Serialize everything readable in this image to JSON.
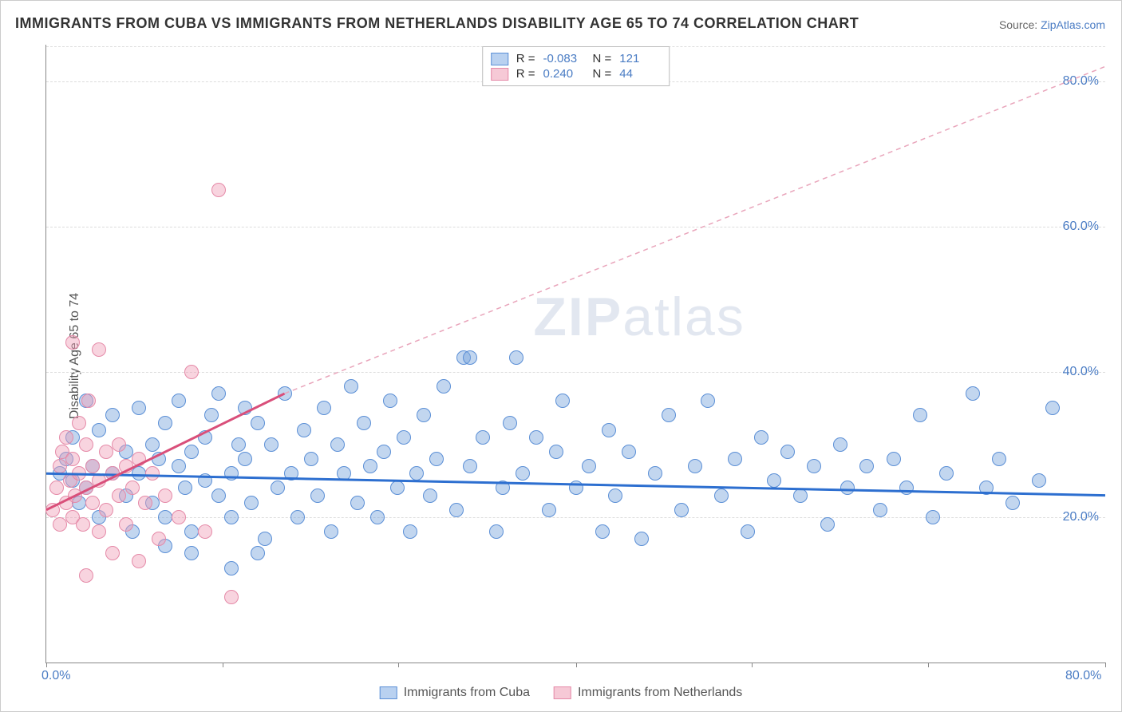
{
  "title": "IMMIGRANTS FROM CUBA VS IMMIGRANTS FROM NETHERLANDS DISABILITY AGE 65 TO 74 CORRELATION CHART",
  "source_label": "Source:",
  "source_name": "ZipAtlas.com",
  "ylabel": "Disability Age 65 to 74",
  "watermark": "ZIPatlas",
  "chart": {
    "type": "scatter",
    "xlim": [
      0,
      80
    ],
    "ylim": [
      0,
      85
    ],
    "xtick_pos": [
      0,
      13.3,
      26.6,
      40,
      53.3,
      66.6,
      80
    ],
    "xtick_labels": [
      "0.0%",
      "",
      "",
      "",
      "",
      "",
      "80.0%"
    ],
    "yticks": [
      20,
      40,
      60,
      80
    ],
    "ytick_labels": [
      "20.0%",
      "40.0%",
      "60.0%",
      "80.0%"
    ],
    "background_color": "#ffffff",
    "grid_color": "#dddddd",
    "marker_radius": 9,
    "marker_opacity": 0.45,
    "series": [
      {
        "name": "Immigrants from Cuba",
        "color_fill": "#b9d1f0",
        "color_stroke": "#5b8fd6",
        "R": "-0.083",
        "N": "121",
        "regression": {
          "x1": 0,
          "y1": 26,
          "x2": 80,
          "y2": 23,
          "stroke": "#2d6fd0",
          "width": 3,
          "dash": "none"
        },
        "points": [
          [
            1,
            26
          ],
          [
            1.5,
            28
          ],
          [
            2,
            25
          ],
          [
            2,
            31
          ],
          [
            2.5,
            22
          ],
          [
            3,
            24
          ],
          [
            3,
            36
          ],
          [
            3.5,
            27
          ],
          [
            4,
            20
          ],
          [
            4,
            32
          ],
          [
            5,
            26
          ],
          [
            5,
            34
          ],
          [
            6,
            23
          ],
          [
            6,
            29
          ],
          [
            6.5,
            18
          ],
          [
            7,
            35
          ],
          [
            7,
            26
          ],
          [
            8,
            30
          ],
          [
            8,
            22
          ],
          [
            8.5,
            28
          ],
          [
            9,
            33
          ],
          [
            9,
            20
          ],
          [
            10,
            27
          ],
          [
            10,
            36
          ],
          [
            10.5,
            24
          ],
          [
            11,
            29
          ],
          [
            11,
            18
          ],
          [
            12,
            31
          ],
          [
            12,
            25
          ],
          [
            12.5,
            34
          ],
          [
            13,
            23
          ],
          [
            13,
            37
          ],
          [
            14,
            26
          ],
          [
            14,
            20
          ],
          [
            14.5,
            30
          ],
          [
            15,
            28
          ],
          [
            15,
            35
          ],
          [
            15.5,
            22
          ],
          [
            16,
            33
          ],
          [
            16.5,
            17
          ],
          [
            17,
            30
          ],
          [
            17.5,
            24
          ],
          [
            18,
            37
          ],
          [
            18.5,
            26
          ],
          [
            19,
            20
          ],
          [
            19.5,
            32
          ],
          [
            20,
            28
          ],
          [
            20.5,
            23
          ],
          [
            21,
            35
          ],
          [
            21.5,
            18
          ],
          [
            22,
            30
          ],
          [
            22.5,
            26
          ],
          [
            23,
            38
          ],
          [
            23.5,
            22
          ],
          [
            24,
            33
          ],
          [
            24.5,
            27
          ],
          [
            25,
            20
          ],
          [
            25.5,
            29
          ],
          [
            26,
            36
          ],
          [
            26.5,
            24
          ],
          [
            27,
            31
          ],
          [
            27.5,
            18
          ],
          [
            28,
            26
          ],
          [
            28.5,
            34
          ],
          [
            29,
            23
          ],
          [
            29.5,
            28
          ],
          [
            30,
            38
          ],
          [
            31,
            21
          ],
          [
            31.5,
            42
          ],
          [
            32,
            27
          ],
          [
            33,
            31
          ],
          [
            34,
            18
          ],
          [
            34.5,
            24
          ],
          [
            35,
            33
          ],
          [
            35.5,
            42
          ],
          [
            36,
            26
          ],
          [
            37,
            31
          ],
          [
            38,
            21
          ],
          [
            38.5,
            29
          ],
          [
            39,
            36
          ],
          [
            40,
            24
          ],
          [
            41,
            27
          ],
          [
            42,
            18
          ],
          [
            42.5,
            32
          ],
          [
            43,
            23
          ],
          [
            44,
            29
          ],
          [
            45,
            17
          ],
          [
            46,
            26
          ],
          [
            47,
            34
          ],
          [
            48,
            21
          ],
          [
            49,
            27
          ],
          [
            50,
            36
          ],
          [
            51,
            23
          ],
          [
            52,
            28
          ],
          [
            53,
            18
          ],
          [
            54,
            31
          ],
          [
            55,
            25
          ],
          [
            56,
            29
          ],
          [
            57,
            23
          ],
          [
            58,
            27
          ],
          [
            59,
            19
          ],
          [
            60,
            30
          ],
          [
            60.5,
            24
          ],
          [
            62,
            27
          ],
          [
            63,
            21
          ],
          [
            64,
            28
          ],
          [
            65,
            24
          ],
          [
            66,
            34
          ],
          [
            67,
            20
          ],
          [
            68,
            26
          ],
          [
            70,
            37
          ],
          [
            71,
            24
          ],
          [
            72,
            28
          ],
          [
            73,
            22
          ],
          [
            75,
            25
          ],
          [
            76,
            35
          ],
          [
            14,
            13
          ],
          [
            16,
            15
          ],
          [
            9,
            16
          ],
          [
            11,
            15
          ],
          [
            32,
            42
          ]
        ]
      },
      {
        "name": "Immigrants from Netherlands",
        "color_fill": "#f6c9d6",
        "color_stroke": "#e58aa8",
        "R": "0.240",
        "N": "44",
        "regression": {
          "x1": 0,
          "y1": 21,
          "x2": 18,
          "y2": 37,
          "stroke": "#d94f7a",
          "width": 3,
          "dash": "none"
        },
        "regression_extend": {
          "x1": 18,
          "y1": 37,
          "x2": 80,
          "y2": 82,
          "stroke": "#e9a5bb",
          "width": 1.5,
          "dash": "6 5"
        },
        "points": [
          [
            0.5,
            21
          ],
          [
            0.8,
            24
          ],
          [
            1,
            19
          ],
          [
            1,
            27
          ],
          [
            1.2,
            29
          ],
          [
            1.5,
            22
          ],
          [
            1.5,
            31
          ],
          [
            1.8,
            25
          ],
          [
            2,
            20
          ],
          [
            2,
            28
          ],
          [
            2,
            44
          ],
          [
            2.2,
            23
          ],
          [
            2.5,
            26
          ],
          [
            2.5,
            33
          ],
          [
            2.8,
            19
          ],
          [
            3,
            24
          ],
          [
            3,
            30
          ],
          [
            3.2,
            36
          ],
          [
            3.5,
            22
          ],
          [
            3.5,
            27
          ],
          [
            4,
            18
          ],
          [
            4,
            25
          ],
          [
            4,
            43
          ],
          [
            4.5,
            29
          ],
          [
            4.5,
            21
          ],
          [
            5,
            26
          ],
          [
            5,
            15
          ],
          [
            5.5,
            23
          ],
          [
            5.5,
            30
          ],
          [
            6,
            19
          ],
          [
            6,
            27
          ],
          [
            6.5,
            24
          ],
          [
            7,
            14
          ],
          [
            7,
            28
          ],
          [
            7.5,
            22
          ],
          [
            8,
            26
          ],
          [
            8.5,
            17
          ],
          [
            9,
            23
          ],
          [
            10,
            20
          ],
          [
            11,
            40
          ],
          [
            12,
            18
          ],
          [
            13,
            65
          ],
          [
            14,
            9
          ],
          [
            3,
            12
          ]
        ]
      }
    ]
  },
  "legend_bottom": [
    {
      "swatch": "blue",
      "label": "Immigrants from Cuba"
    },
    {
      "swatch": "pink",
      "label": "Immigrants from Netherlands"
    }
  ]
}
